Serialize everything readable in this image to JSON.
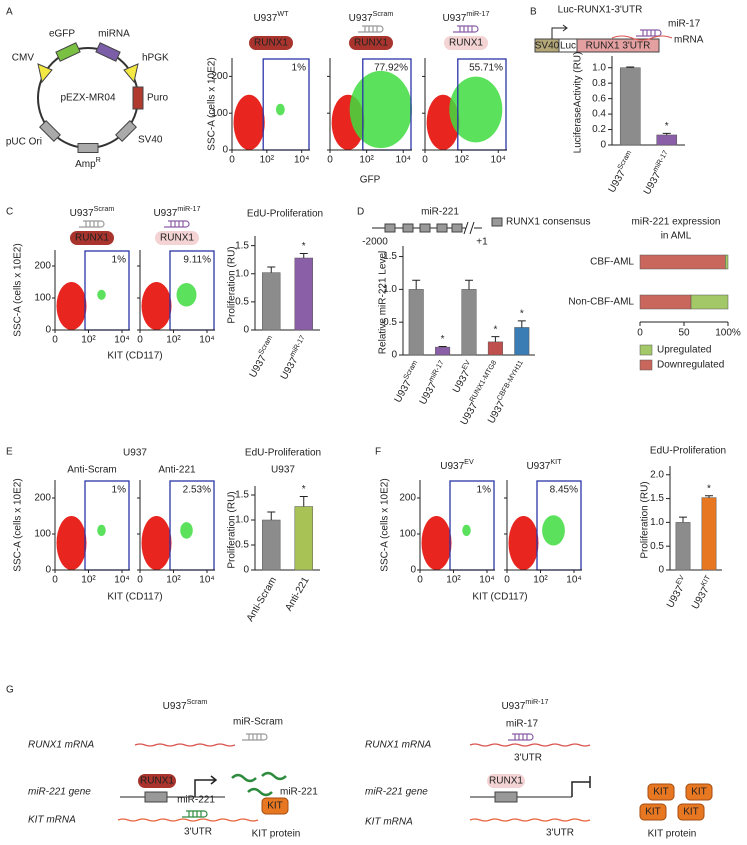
{
  "chart_data": [
    {
      "type": "bar",
      "title": "Luc-RUNX1-3'UTR",
      "ylabel": "LuciferaseActivity (RU)",
      "ylim": [
        0,
        1.1
      ],
      "yticks": [
        0,
        0.2,
        0.4,
        0.6,
        0.8,
        {
          "value": 1,
          "label": "1.0"
        }
      ],
      "categories": [
        {
          "base": "U937",
          "sup": "Scram"
        },
        {
          "base": "U937",
          "sup": "miR-17"
        }
      ],
      "values": [
        1.0,
        0.13
      ],
      "errors": [
        0.01,
        0.02
      ],
      "colors": [
        "#8c8c8c",
        "#8b5fa8"
      ],
      "significance": [
        null,
        "*"
      ]
    },
    {
      "type": "bar",
      "title": "EdU-Proliferation",
      "ylabel": "Proliferation (RU)",
      "ylim": [
        0,
        1.6
      ],
      "yticks": [
        0,
        0.5,
        {
          "value": 1,
          "label": "1.0"
        },
        1.5
      ],
      "categories": [
        {
          "base": "U937",
          "sup": "Scram"
        },
        {
          "base": "U937",
          "sup": "miR-17"
        }
      ],
      "values": [
        1.02,
        1.28
      ],
      "errors": [
        0.1,
        0.08
      ],
      "colors": [
        "#8c8c8c",
        "#8b5fa8"
      ],
      "significance": [
        null,
        "*"
      ]
    },
    {
      "type": "bar",
      "ylabel": "Relative miR-221 Level",
      "ylim": [
        0,
        1.6
      ],
      "yticks": [
        0,
        0.5,
        {
          "value": 1,
          "label": "1.0"
        },
        1.5
      ],
      "categories": [
        {
          "base": "U937",
          "sup": "Scram"
        },
        {
          "base": "U937",
          "sup": "miR-17"
        },
        {
          "base": "U937",
          "sup": "EV"
        },
        {
          "base": "U937",
          "sup": "RUNX1-MTG8"
        },
        {
          "base": "U937",
          "sup": "CBFB-MYH11"
        }
      ],
      "values": [
        1.0,
        0.12,
        1.0,
        0.2,
        0.42
      ],
      "errors": [
        0.14,
        0.01,
        0.14,
        0.08,
        0.1
      ],
      "colors": [
        "#8c8c8c",
        "#8b5fa8",
        "#8c8c8c",
        "#c0504d",
        "#3a7db5"
      ],
      "significance": [
        null,
        "*",
        null,
        "*",
        "*"
      ]
    },
    {
      "type": "stacked_barh",
      "title": [
        "miR-221 expression",
        "in AML"
      ],
      "categories": [
        "CBF-AML",
        "Non-CBF-AML"
      ],
      "series": [
        {
          "name": "Downregulated",
          "color": "#c9675c",
          "values": [
            97,
            58
          ]
        },
        {
          "name": "Upregulated",
          "color": "#a3c867",
          "values": [
            3,
            42
          ]
        }
      ],
      "xlim": [
        0,
        100
      ],
      "xticks": [
        0,
        50,
        {
          "value": 100,
          "label": "100%"
        }
      ]
    },
    {
      "type": "bar",
      "title": "EdU-Proliferation",
      "subtitle": "U937",
      "ylabel": "Proliferation (RU)",
      "ylim": [
        0,
        1.6
      ],
      "yticks": [
        0,
        0.5,
        {
          "value": 1,
          "label": "1.0"
        },
        1.5
      ],
      "categories": [
        "Anti-Scram",
        "Anti-221"
      ],
      "values": [
        1.0,
        1.27
      ],
      "errors": [
        0.16,
        0.2
      ],
      "colors": [
        "#8c8c8c",
        "#a8c256"
      ],
      "significance": [
        null,
        "*"
      ]
    },
    {
      "type": "bar",
      "title": "EdU-Proliferation",
      "ylabel": "Proliferation (RU)",
      "ylim": [
        0,
        2.1
      ],
      "yticks": [
        0,
        0.5,
        {
          "value": 1,
          "label": "1.0"
        },
        1.5,
        {
          "value": 2,
          "label": "2.0"
        }
      ],
      "categories": [
        {
          "base": "U937",
          "sup": "EV"
        },
        {
          "base": "U937",
          "sup": "KIT"
        }
      ],
      "values": [
        1.0,
        1.52
      ],
      "errors": [
        0.11,
        0.04
      ],
      "colors": [
        "#8c8c8c",
        "#e87722"
      ],
      "significance": [
        null,
        "*"
      ]
    }
  ],
  "figure": {
    "panel_labels": [
      "A",
      "B",
      "C",
      "D",
      "E",
      "F",
      "G"
    ],
    "flow_axes": {
      "xlim": [
        1,
        30000
      ],
      "xticks": [
        0,
        {
          "value": 100,
          "label": "10²"
        },
        {
          "value": 10000,
          "label": "10⁴"
        }
      ],
      "ylim": [
        0,
        250
      ],
      "yticks": [
        0,
        100,
        200
      ]
    },
    "A": {
      "plasmid": {
        "name": "pEZX-MR04",
        "egfp": "eGFP",
        "mirna": "miRNA",
        "cmv": "CMV",
        "hpgk": "hPGK",
        "puro": "Puro",
        "sv40": "SV40",
        "amp": {
          "base": "Amp",
          "sup": "R"
        },
        "puc": "pUC Ori"
      },
      "ylabel": "SSC-A (cells x 10E2)",
      "xlabel": "GFP",
      "plots": [
        {
          "title": {
            "base": "U937",
            "sup": "WT"
          },
          "badge": {
            "label": "RUNX1",
            "faded": false
          },
          "gate": "1%"
        },
        {
          "title": {
            "base": "U937",
            "sup": "Scram"
          },
          "hairpin": "#9a9a9a",
          "badge": {
            "label": "RUNX1",
            "faded": false
          },
          "gate": "77.92%"
        },
        {
          "title": {
            "base": "U937",
            "sup": "miR-17"
          },
          "hairpin": "#8b5fa8",
          "badge": {
            "label": "RUNX1",
            "faded": true
          },
          "gate": "55.71%"
        }
      ]
    },
    "B": {
      "sv40": "SV40",
      "luc": "Luc",
      "utr": "RUNX1 3'UTR",
      "mirna": "miR-17",
      "mrna": "mRNA"
    },
    "C": {
      "ylabel": "SSC-A (cells x 10E2)",
      "xlabel": "KIT (CD117)",
      "plots": [
        {
          "title": {
            "base": "U937",
            "sup": "Scram"
          },
          "hairpin": "#9a9a9a",
          "badge": {
            "label": "RUNX1",
            "faded": false
          },
          "gate": "1%"
        },
        {
          "title": {
            "base": "U937",
            "sup": "miR-17"
          },
          "hairpin": "#8b5fa8",
          "badge": {
            "label": "RUNX1",
            "faded": true
          },
          "gate": "9.11%"
        }
      ]
    },
    "D": {
      "gene": "miR-221",
      "start": "-2000",
      "end": "+1",
      "legend": "RUNX1 consensus"
    },
    "E": {
      "title": "U937",
      "ylabel": "SSC-A (cells x 10E2)",
      "xlabel": "KIT (CD117)",
      "plots": [
        {
          "title": "Anti-Scram",
          "gate": "1%"
        },
        {
          "title": "Anti-221",
          "gate": "2.53%"
        }
      ]
    },
    "F": {
      "ylabel": "SSC-A (cells x 10E2)",
      "xlabel": "KIT (CD117)",
      "plots": [
        {
          "title": {
            "base": "U937",
            "sup": "EV"
          },
          "gate": "1%"
        },
        {
          "title": {
            "base": "U937",
            "sup": "KIT"
          },
          "gate": "8.45%"
        }
      ]
    },
    "G": {
      "left": {
        "title": {
          "base": "U937",
          "sup": "Scram"
        },
        "runx1_mrna": "RUNX1 mRNA",
        "mirna": "miR-Scram",
        "gene": "miR-221 gene",
        "runx1": "RUNX1",
        "product": "miR-221",
        "kit_mrna": "KIT mRNA",
        "kit_mirna": "miR-221",
        "utr": "3'UTR",
        "kit": "KIT",
        "protein": "KIT protein"
      },
      "right": {
        "title": {
          "base": "U937",
          "sup": "miR-17"
        },
        "runx1_mrna": "RUNX1 mRNA",
        "mirna": "miR-17",
        "utr1": "3'UTR",
        "gene": "miR-221 gene",
        "runx1": "RUNX1",
        "kit_mrna": "KIT mRNA",
        "utr2": "3'UTR",
        "kits": [
          "KIT",
          "KIT",
          "KIT",
          "KIT"
        ],
        "protein": "KIT protein"
      }
    }
  }
}
